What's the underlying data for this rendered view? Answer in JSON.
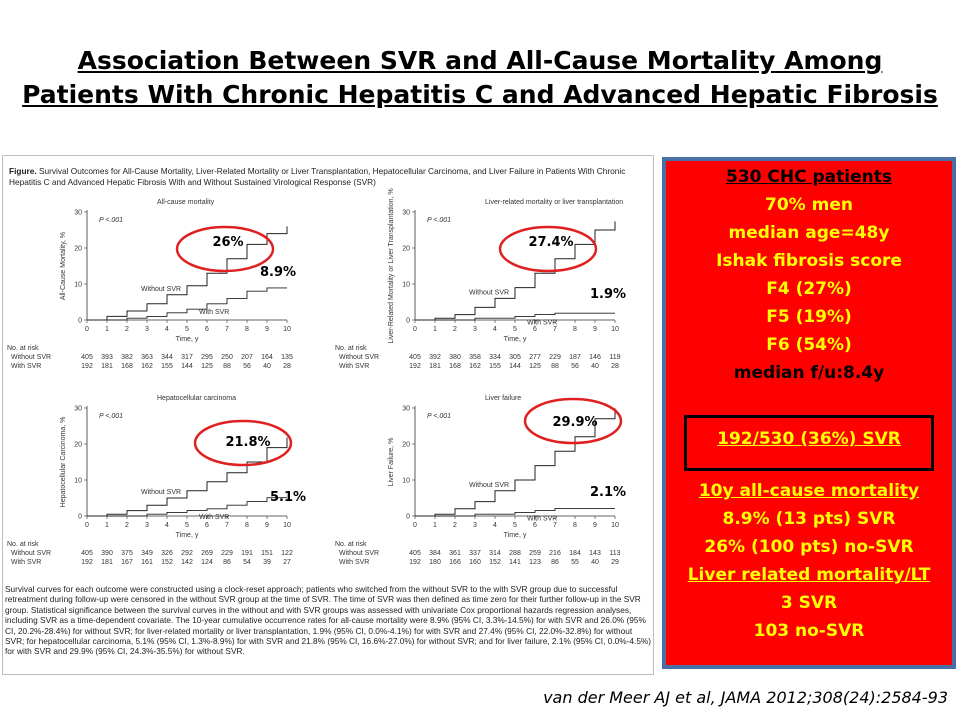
{
  "slide": {
    "title_line1": "Association Between SVR and All-Cause Mortality Among",
    "title_line2": "Patients With Chronic Hepatitis C and Advanced Hepatic Fibrosis",
    "citation": "van der Meer AJ et al, JAMA 2012;308(24):2584-93"
  },
  "figure": {
    "caption_label": "Figure.",
    "caption_text": "Survival Outcomes for All-Cause Mortality, Liver-Related Mortality or Liver Transplantation, Hepatocellular Carcinoma, and Liver Failure in Patients With Chronic Hepatitis C and Advanced Hepatic Fibrosis With and Without Sustained Virological Response (SVR)",
    "footnote": "Survival curves for each outcome were constructed using a clock-reset approach; patients who switched from the without SVR to the with SVR group due to successful retreatment during follow-up were censored in the without SVR group at the time of SVR. The time of SVR was then defined as time zero for their further follow-up in the SVR group. Statistical significance between the survival curves in the without and with SVR groups was assessed with univariate Cox proportional hazards regression analyses, including SVR as a time-dependent covariate. The 10-year cumulative occurrence rates for all-cause mortality were 8.9% (95% CI, 3.3%-14.5%) for with SVR and 26.0% (95% CI, 20.2%-28.4%) for without SVR; for liver-related mortality or liver transplantation, 1.9% (95% CI, 0.0%-4.1%) for with SVR and 27.4% (95% CI, 22.0%-32.8%) for without SVR; for hepatocellular carcinoma, 5.1% (95% CI, 1.3%-8.9%) for with SVR and 21.8% (95% CI, 16.6%-27.0%) for without SVR; and for liver failure, 2.1% (95% CI, 0.0%-4.5%) for with SVR and 29.9% (95% CI, 24.3%-35.5%) for without SVR."
  },
  "chart_data": [
    {
      "type": "line",
      "title": "All-cause mortality",
      "ylabel": "All-Cause Mortality, %",
      "xlabel": "Time, y",
      "xlim": [
        0,
        10
      ],
      "ylim": [
        0,
        30
      ],
      "x_ticks": [
        0,
        1,
        2,
        3,
        4,
        5,
        6,
        7,
        8,
        9,
        10
      ],
      "y_ticks": [
        0,
        10,
        20,
        30
      ],
      "p_value": "P <.001",
      "series": [
        {
          "name": "Without SVR",
          "x": [
            0,
            1,
            2,
            3,
            4,
            5,
            6,
            7,
            8,
            9,
            10
          ],
          "y": [
            0,
            1,
            2.5,
            4.5,
            7,
            9.5,
            13,
            17,
            21,
            24,
            26
          ]
        },
        {
          "name": "With SVR",
          "x": [
            0,
            1,
            2,
            3,
            4,
            5,
            6,
            7,
            8,
            9,
            10
          ],
          "y": [
            0,
            0,
            0.5,
            1,
            2,
            3,
            4.5,
            6,
            8,
            8.9,
            8.9
          ]
        }
      ],
      "callouts": {
        "without": "26%",
        "with": "8.9%"
      },
      "risk_table": {
        "header": "No. at risk",
        "rows": [
          {
            "label": "Without SVR",
            "values": [
              405,
              393,
              382,
              363,
              344,
              317,
              295,
              250,
              207,
              164,
              135
            ]
          },
          {
            "label": "With SVR",
            "values": [
              192,
              181,
              168,
              162,
              155,
              144,
              125,
              88,
              56,
              40,
              28
            ]
          }
        ]
      }
    },
    {
      "type": "line",
      "title": "Liver-related mortality or liver transplantation",
      "ylabel": "Liver-Related Mortality or Liver Transplantation, %",
      "xlabel": "Time, y",
      "xlim": [
        0,
        10
      ],
      "ylim": [
        0,
        30
      ],
      "x_ticks": [
        0,
        1,
        2,
        3,
        4,
        5,
        6,
        7,
        8,
        9,
        10
      ],
      "y_ticks": [
        0,
        10,
        20,
        30
      ],
      "p_value": "P <.001",
      "series": [
        {
          "name": "Without SVR",
          "x": [
            0,
            1,
            2,
            3,
            4,
            5,
            6,
            7,
            8,
            9,
            10
          ],
          "y": [
            0,
            0.5,
            1.5,
            3.5,
            6,
            9,
            13,
            17,
            21,
            25,
            27.4
          ]
        },
        {
          "name": "With SVR",
          "x": [
            0,
            1,
            2,
            3,
            4,
            5,
            6,
            7,
            8,
            9,
            10
          ],
          "y": [
            0,
            0,
            0,
            0.5,
            0.5,
            1,
            1.5,
            1.9,
            1.9,
            1.9,
            1.9
          ]
        }
      ],
      "callouts": {
        "without": "27.4%",
        "with": "1.9%"
      },
      "risk_table": {
        "header": "No. at risk",
        "rows": [
          {
            "label": "Without SVR",
            "values": [
              405,
              392,
              380,
              358,
              334,
              305,
              277,
              229,
              187,
              146,
              119
            ]
          },
          {
            "label": "With SVR",
            "values": [
              192,
              181,
              168,
              162,
              155,
              144,
              125,
              88,
              56,
              40,
              28
            ]
          }
        ]
      }
    },
    {
      "type": "line",
      "title": "Hepatocellular carcinoma",
      "ylabel": "Hepatocellular Carcinoma, %",
      "xlabel": "Time, y",
      "xlim": [
        0,
        10
      ],
      "ylim": [
        0,
        30
      ],
      "x_ticks": [
        0,
        1,
        2,
        3,
        4,
        5,
        6,
        7,
        8,
        9,
        10
      ],
      "y_ticks": [
        0,
        10,
        20,
        30
      ],
      "p_value": "P <.001",
      "series": [
        {
          "name": "Without SVR",
          "x": [
            0,
            1,
            2,
            3,
            4,
            5,
            6,
            7,
            8,
            9,
            10
          ],
          "y": [
            0,
            0.5,
            1.5,
            3,
            5,
            7,
            9.5,
            12,
            15,
            19,
            21.8
          ]
        },
        {
          "name": "With SVR",
          "x": [
            0,
            1,
            2,
            3,
            4,
            5,
            6,
            7,
            8,
            9,
            10
          ],
          "y": [
            0,
            0,
            0,
            0.5,
            1,
            1.5,
            2,
            3,
            4,
            5.1,
            5.1
          ]
        }
      ],
      "callouts": {
        "without": "21.8%",
        "with": "5.1%"
      },
      "risk_table": {
        "header": "No. at risk",
        "rows": [
          {
            "label": "Without SVR",
            "values": [
              405,
              390,
              375,
              349,
              326,
              292,
              269,
              229,
              191,
              151,
              122
            ]
          },
          {
            "label": "With SVR",
            "values": [
              192,
              181,
              167,
              161,
              152,
              142,
              124,
              86,
              54,
              39,
              27
            ]
          }
        ]
      }
    },
    {
      "type": "line",
      "title": "Liver failure",
      "ylabel": "Liver Failure, %",
      "xlabel": "Time, y",
      "xlim": [
        0,
        10
      ],
      "ylim": [
        0,
        30
      ],
      "x_ticks": [
        0,
        1,
        2,
        3,
        4,
        5,
        6,
        7,
        8,
        9,
        10
      ],
      "y_ticks": [
        0,
        10,
        20,
        30
      ],
      "p_value": "P <.001",
      "series": [
        {
          "name": "Without SVR",
          "x": [
            0,
            1,
            2,
            3,
            4,
            5,
            6,
            7,
            8,
            9,
            10
          ],
          "y": [
            0,
            0.5,
            2,
            4,
            7,
            10,
            14,
            18,
            22,
            27,
            29.9
          ]
        },
        {
          "name": "With SVR",
          "x": [
            0,
            1,
            2,
            3,
            4,
            5,
            6,
            7,
            8,
            9,
            10
          ],
          "y": [
            0,
            0,
            0,
            0.5,
            0.5,
            1,
            1.5,
            2.1,
            2.1,
            2.1,
            2.1
          ]
        }
      ],
      "callouts": {
        "without": "29.9%",
        "with": "2.1%"
      },
      "risk_table": {
        "header": "No. at risk",
        "rows": [
          {
            "label": "Without SVR",
            "values": [
              405,
              384,
              361,
              337,
              314,
              288,
              259,
              216,
              184,
              143,
              113
            ]
          },
          {
            "label": "With SVR",
            "values": [
              192,
              180,
              166,
              160,
              152,
              141,
              123,
              86,
              55,
              40,
              29
            ]
          }
        ]
      }
    }
  ],
  "info_box": {
    "lines": [
      {
        "text": "530 CHC patients",
        "style": "ul"
      },
      {
        "text": "70% men",
        "style": "yellow"
      },
      {
        "text": "median age=48y",
        "style": "yellow"
      },
      {
        "text": "Ishak fibrosis score",
        "style": "yellow"
      },
      {
        "text": "F4 (27%)",
        "style": "yellow"
      },
      {
        "text": "F5 (19%)",
        "style": "yellow"
      },
      {
        "text": "F6 (54%)",
        "style": "yellow"
      },
      {
        "text": "median f/u:8.4y",
        "style": "black"
      },
      {
        "text": "192/530 (36%) SVR",
        "style": "yellow-ul"
      },
      {
        "text": "10y all-cause mortality",
        "style": "yellow-ul"
      },
      {
        "text": "8.9%  (13 pts) SVR",
        "style": "yellow"
      },
      {
        "text": "26%  (100 pts) no-SVR",
        "style": "yellow"
      },
      {
        "text": "Liver related mortality/LT",
        "style": "yellow-ul"
      },
      {
        "text": "3 SVR",
        "style": "yellow"
      },
      {
        "text": "103 no-SVR",
        "style": "yellow"
      }
    ],
    "colors": {
      "background": "#ff0000",
      "border": "#4a6fa5",
      "highlight": "#ffff00"
    }
  }
}
